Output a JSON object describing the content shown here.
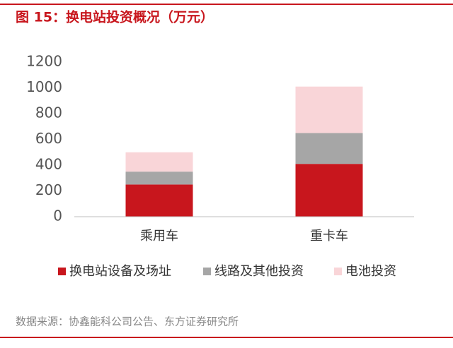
{
  "chart_data": {
    "type": "stacked_bar",
    "title": "图 15：换电站投资概况（万元）",
    "categories": [
      "乘用车",
      "重卡车"
    ],
    "series": [
      {
        "name": "换电站设备及场址",
        "color": "#c8161d",
        "values": [
          250,
          410
        ]
      },
      {
        "name": "线路及其他投资",
        "color": "#a6a6a6",
        "values": [
          100,
          240
        ]
      },
      {
        "name": "电池投资",
        "color": "#f9d5d8",
        "values": [
          150,
          360
        ]
      }
    ],
    "ylim": [
      0,
      1200
    ],
    "yticks": [
      0,
      200,
      400,
      600,
      800,
      1000,
      1200
    ],
    "grid": false,
    "source": "数据来源：协鑫能科公司公告、东方证券研究所"
  }
}
